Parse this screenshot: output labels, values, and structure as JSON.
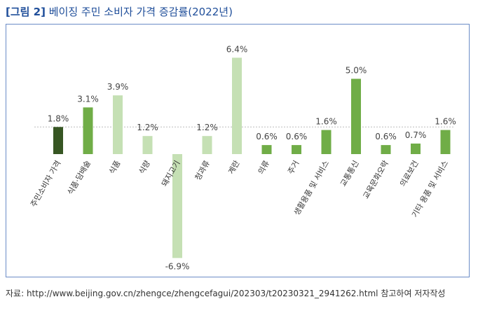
{
  "header": {
    "figure_no": "[그림 2]",
    "title": "베이징 주민 소비자 가격 증감률(2022년)"
  },
  "footer": {
    "source": "자료: http://www.beijing.gov.cn/zhengce/zhengcefagui/202303/t20230321_2941262.html 참고하여 저자작성"
  },
  "chart_data": {
    "type": "bar",
    "title": "베이징 주민 소비자 가격 증감률(2022년)",
    "xlabel": "",
    "ylabel": "",
    "grid": false,
    "reference_line": 1.8,
    "categories": [
      "주민소비자 가격",
      "식품·담배술",
      "식품",
      "식량",
      "돼지고기",
      "청과류",
      "계란",
      "의류",
      "주거",
      "생활용품 및 서비스",
      "교통통신",
      "교육문화오락",
      "의료보건",
      "기타 용품 및 서비스"
    ],
    "values": [
      1.8,
      3.1,
      3.9,
      1.2,
      -6.9,
      1.2,
      6.4,
      0.6,
      0.6,
      1.6,
      5.0,
      0.6,
      0.7,
      1.6
    ],
    "value_labels": [
      "1.8%",
      "3.1%",
      "3.9%",
      "1.2%",
      "-6.9%",
      "1.2%",
      "6.4%",
      "0.6%",
      "0.6%",
      "1.6%",
      "5.0%",
      "0.6%",
      "0.7%",
      "1.6%"
    ],
    "bar_colors": [
      "#375623",
      "#70ad47",
      "#c5e0b4",
      "#c5e0b4",
      "#c5e0b4",
      "#c5e0b4",
      "#c5e0b4",
      "#70ad47",
      "#70ad47",
      "#70ad47",
      "#70ad47",
      "#70ad47",
      "#70ad47",
      "#70ad47"
    ]
  }
}
